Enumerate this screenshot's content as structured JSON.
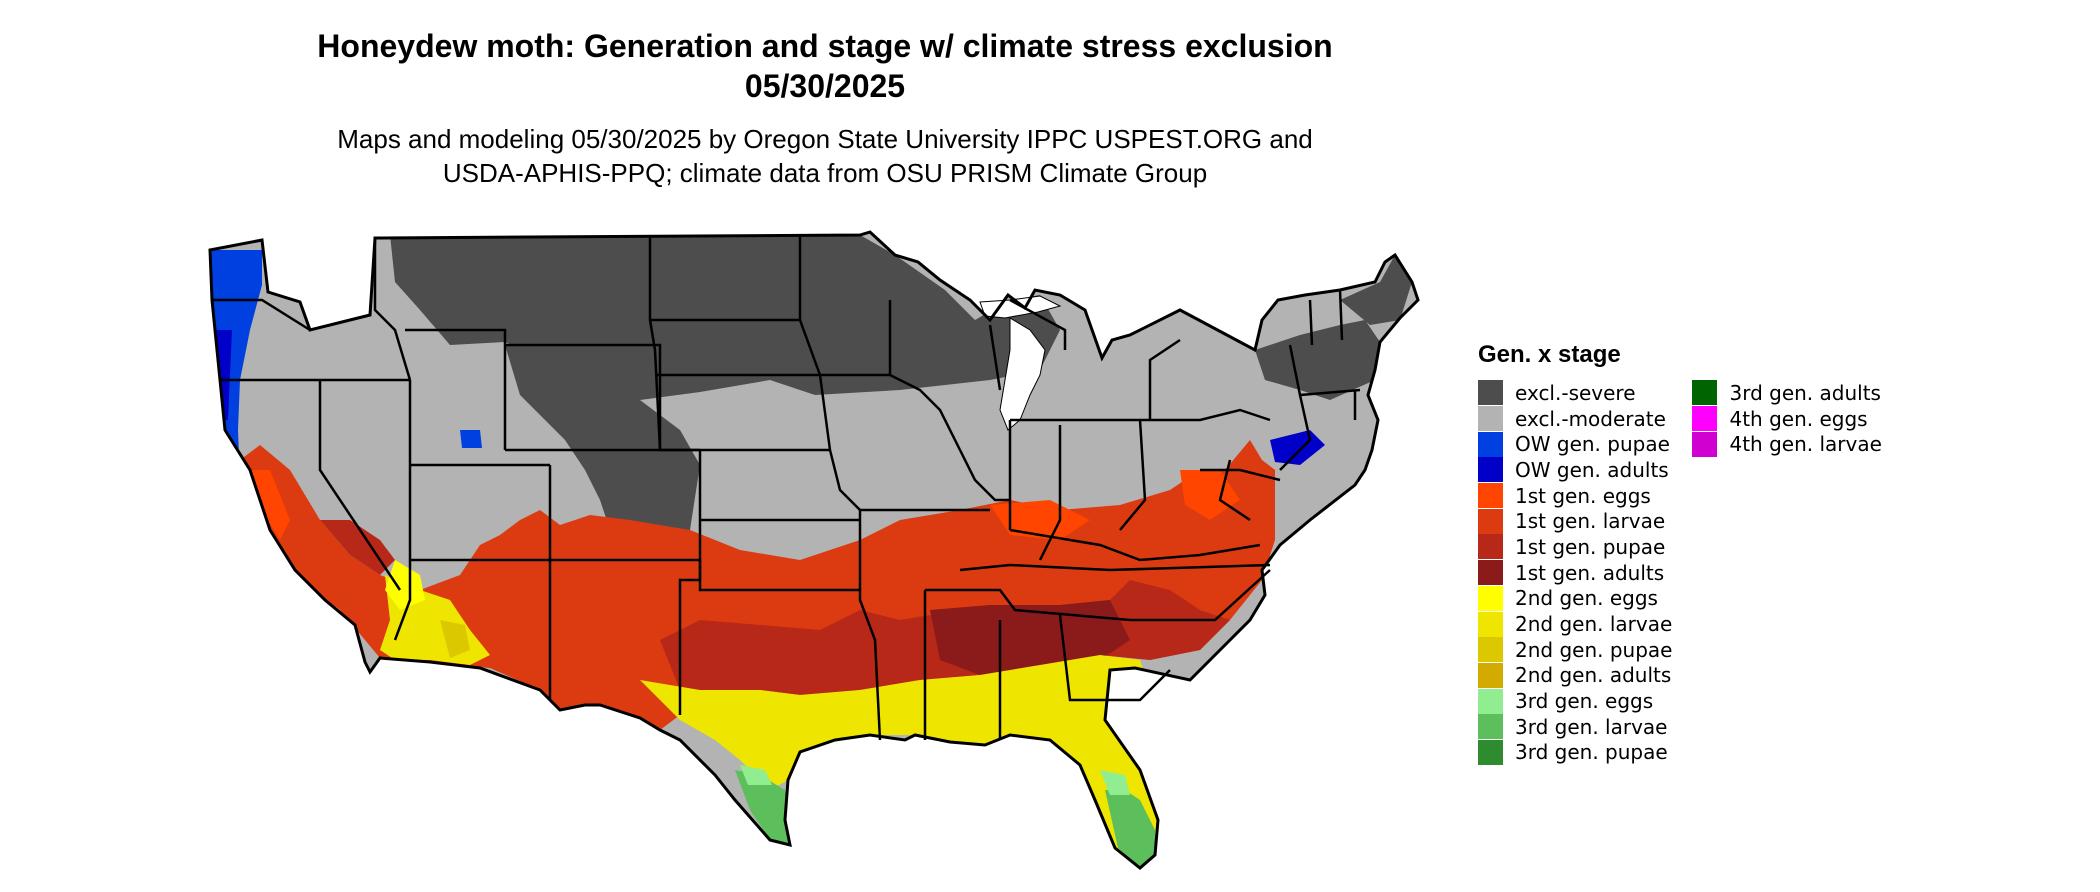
{
  "title": {
    "line1": "Honeydew moth: Generation and stage w/ climate stress exclusion",
    "line2": "05/30/2025"
  },
  "subtitle": {
    "line1": "Maps and modeling 05/30/2025 by Oregon State University IPPC USPEST.ORG and",
    "line2": "USDA-APHIS-PPQ; climate data from OSU PRISM Climate Group"
  },
  "legend": {
    "title": "Gen. x stage",
    "col1": [
      {
        "label": "excl.-severe",
        "color": "#4d4d4d"
      },
      {
        "label": "excl.-moderate",
        "color": "#b3b3b3"
      },
      {
        "label": "OW gen. pupae",
        "color": "#0040e0"
      },
      {
        "label": "OW gen. adults",
        "color": "#0000c8"
      },
      {
        "label": "1st gen. eggs",
        "color": "#ff4500"
      },
      {
        "label": "1st gen. larvae",
        "color": "#dc3a10"
      },
      {
        "label": "1st gen. pupae",
        "color": "#b82818"
      },
      {
        "label": "1st gen. adults",
        "color": "#8b1a1a"
      },
      {
        "label": "2nd gen. eggs",
        "color": "#ffff00"
      },
      {
        "label": "2nd gen. larvae",
        "color": "#eee600"
      },
      {
        "label": "2nd gen. pupae",
        "color": "#dcc800"
      },
      {
        "label": "2nd gen. adults",
        "color": "#d2aa00"
      },
      {
        "label": "3rd gen. eggs",
        "color": "#90ee90"
      },
      {
        "label": "3rd gen. larvae",
        "color": "#5cbf5c"
      },
      {
        "label": "3rd gen. pupae",
        "color": "#2e8b2e"
      }
    ],
    "col2": [
      {
        "label": "3rd gen. adults",
        "color": "#006400"
      },
      {
        "label": "4th gen. eggs",
        "color": "#ff00ff"
      },
      {
        "label": "4th gen. larvae",
        "color": "#d000d0"
      }
    ]
  }
}
